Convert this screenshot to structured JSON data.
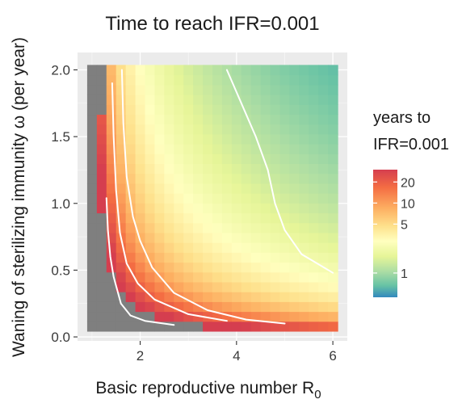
{
  "chart_data": {
    "type": "heatmap",
    "title": "Time to reach IFR=0.001",
    "xlabel": "Basic reproductive number R",
    "xlabel_subscript": "0",
    "ylabel": "Waning of sterilizing immunity ω (per year)",
    "x_ticks": [
      "2",
      "4",
      "6"
    ],
    "x_tick_values": [
      2,
      4,
      6
    ],
    "y_ticks": [
      "0.0",
      "0.5",
      "1.0",
      "1.5",
      "2.0"
    ],
    "y_tick_values": [
      0.0,
      0.5,
      1.0,
      1.5,
      2.0
    ],
    "xlim": [
      0.7,
      6.3
    ],
    "ylim": [
      -0.03,
      2.13
    ],
    "x_range": [
      1.0,
      6.0
    ],
    "y_range": [
      0.08,
      2.0
    ],
    "grid": true,
    "color_scale": "log",
    "colormap": [
      "#3288bd",
      "#66c2a5",
      "#abdda4",
      "#e6f598",
      "#ffffbf",
      "#fee08b",
      "#fdae61",
      "#f46d43",
      "#d53e4f"
    ],
    "no_value_color": "#7f7f7f",
    "legend": {
      "title_line1": "years to",
      "title_line2": "IFR=0.001",
      "ticks": [
        "20",
        "10",
        "5",
        "1"
      ],
      "tick_values": [
        20,
        10,
        5,
        1
      ],
      "range": [
        0.45,
        30
      ],
      "position": "right"
    },
    "contours": [
      {
        "level": 15,
        "points": [
          [
            1.3,
            1.04
          ],
          [
            1.33,
            0.8
          ],
          [
            1.38,
            0.6
          ],
          [
            1.45,
            0.45
          ],
          [
            1.6,
            0.25
          ],
          [
            1.8,
            0.16
          ],
          [
            2.1,
            0.12
          ],
          [
            2.7,
            0.09
          ]
        ]
      },
      {
        "level": 8,
        "points": [
          [
            1.62,
            2.0
          ],
          [
            1.65,
            1.6
          ],
          [
            1.72,
            1.2
          ],
          [
            1.85,
            0.9
          ],
          [
            2.0,
            0.72
          ],
          [
            2.25,
            0.52
          ],
          [
            2.7,
            0.33
          ],
          [
            3.4,
            0.2
          ],
          [
            4.2,
            0.13
          ],
          [
            5.0,
            0.1
          ]
        ]
      },
      {
        "level": 10,
        "points": [
          [
            1.42,
            1.9
          ],
          [
            1.45,
            1.5
          ],
          [
            1.5,
            1.1
          ],
          [
            1.58,
            0.78
          ],
          [
            1.72,
            0.55
          ],
          [
            1.95,
            0.4
          ],
          [
            2.3,
            0.28
          ],
          [
            3.0,
            0.17
          ],
          [
            3.8,
            0.12
          ]
        ]
      },
      {
        "level": 1.5,
        "points": [
          [
            3.8,
            2.0
          ],
          [
            4.1,
            1.75
          ],
          [
            4.4,
            1.5
          ],
          [
            4.65,
            1.25
          ],
          [
            4.8,
            1.0
          ],
          [
            5.0,
            0.8
          ],
          [
            5.35,
            0.62
          ],
          [
            6.0,
            0.48
          ]
        ]
      }
    ]
  }
}
